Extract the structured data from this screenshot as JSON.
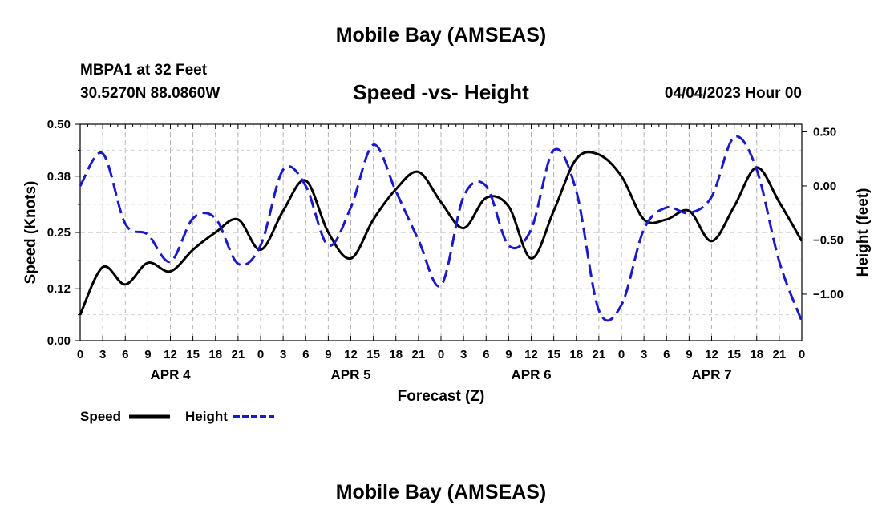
{
  "header": {
    "title": "Mobile Bay (AMSEAS)",
    "station": "MBPA1 at 32 Feet",
    "coords": "30.5270N  88.0860W",
    "run_time": "04/04/2023 Hour 00"
  },
  "footer": {
    "title": "Mobile Bay (AMSEAS)"
  },
  "colors": {
    "speed": "#000000",
    "height": "#1a1ac8",
    "grid": "#b4b4b4"
  },
  "chart_data": {
    "type": "line",
    "title": "Speed -vs- Height",
    "xlabel": "Forecast (Z)",
    "ylabel": "Speed (Knots)",
    "y2label": "Height (feet)",
    "xlim": [
      0,
      96
    ],
    "ylim": [
      0,
      0.5
    ],
    "y2lim": [
      -1.43,
      0.57
    ],
    "yticks": [
      "0.00",
      "0.12",
      "0.25",
      "0.38",
      "0.50"
    ],
    "y2ticks": [
      {
        "value": 0.5,
        "label": "0.50"
      },
      {
        "value": 0.0,
        "label": "0.00"
      },
      {
        "value": -0.5,
        "label": "−0.50"
      },
      {
        "value": -1.0,
        "label": "−1.00"
      }
    ],
    "xticks": [
      "0",
      "3",
      "6",
      "9",
      "12",
      "15",
      "18",
      "21",
      "0",
      "3",
      "6",
      "9",
      "12",
      "15",
      "18",
      "21",
      "0",
      "3",
      "6",
      "9",
      "12",
      "15",
      "18",
      "21",
      "0",
      "3",
      "6",
      "9",
      "12",
      "15",
      "18",
      "21",
      "0"
    ],
    "day_labels": [
      {
        "hour": 12,
        "label": "APR 4"
      },
      {
        "hour": 36,
        "label": "APR 5"
      },
      {
        "hour": 60,
        "label": "APR 6"
      },
      {
        "hour": 84,
        "label": "APR 7"
      }
    ],
    "grid": true,
    "legend": "bottom-left",
    "series": [
      {
        "name": "Speed",
        "axis": "left",
        "style": "solid",
        "x": [
          0,
          3,
          6,
          9,
          12,
          15,
          18,
          21,
          24,
          27,
          30,
          33,
          36,
          39,
          42,
          45,
          48,
          51,
          54,
          57,
          60,
          63,
          66,
          69,
          72,
          75,
          78,
          81,
          84,
          87,
          90,
          93,
          96
        ],
        "values": [
          0.06,
          0.17,
          0.13,
          0.18,
          0.16,
          0.21,
          0.25,
          0.28,
          0.21,
          0.3,
          0.37,
          0.25,
          0.19,
          0.28,
          0.35,
          0.39,
          0.32,
          0.26,
          0.33,
          0.31,
          0.19,
          0.3,
          0.42,
          0.43,
          0.38,
          0.28,
          0.28,
          0.3,
          0.23,
          0.31,
          0.4,
          0.32,
          0.23
        ]
      },
      {
        "name": "Height",
        "axis": "right",
        "style": "dashed",
        "x": [
          0,
          3,
          6,
          9,
          12,
          15,
          18,
          21,
          24,
          27,
          30,
          33,
          36,
          39,
          42,
          45,
          48,
          51,
          54,
          57,
          60,
          63,
          66,
          69,
          72,
          75,
          78,
          81,
          84,
          87,
          90,
          93,
          96
        ],
        "values": [
          0.0,
          0.3,
          -0.35,
          -0.45,
          -0.7,
          -0.3,
          -0.3,
          -0.72,
          -0.55,
          0.15,
          0.0,
          -0.55,
          -0.2,
          0.38,
          -0.05,
          -0.5,
          -0.92,
          -0.1,
          0.0,
          -0.55,
          -0.4,
          0.33,
          -0.05,
          -1.15,
          -1.1,
          -0.4,
          -0.2,
          -0.25,
          -0.1,
          0.45,
          0.15,
          -0.7,
          -1.25
        ]
      }
    ]
  }
}
